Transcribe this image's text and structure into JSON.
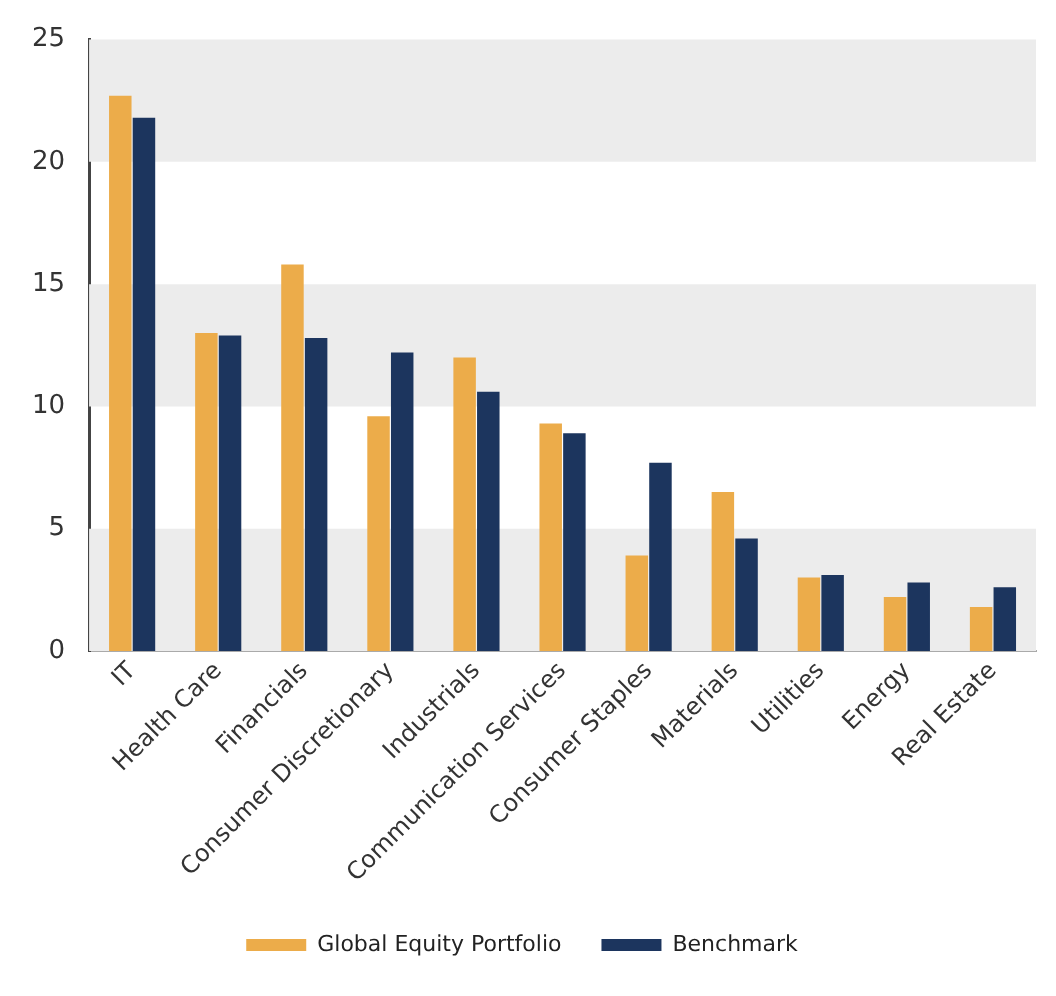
{
  "chart_data": {
    "type": "bar",
    "categories": [
      "IT",
      "Health Care",
      "Financials",
      "Consumer Discretionary",
      "Industrials",
      "Communication Services",
      "Consumer Staples",
      "Materials",
      "Utilities",
      "Energy",
      "Real Estate"
    ],
    "series": [
      {
        "name": "Global Equity Portfolio",
        "color": "#ecac4a",
        "values": [
          22.7,
          13.0,
          15.8,
          9.6,
          12.0,
          9.3,
          3.9,
          6.5,
          3.0,
          2.2,
          1.8
        ]
      },
      {
        "name": "Benchmark",
        "color": "#1c355e",
        "values": [
          21.8,
          12.9,
          12.8,
          12.2,
          10.6,
          8.9,
          7.7,
          4.6,
          3.1,
          2.8,
          2.6
        ]
      }
    ],
    "ylim": [
      0,
      25
    ],
    "yticks": [
      0,
      5,
      10,
      15,
      20,
      25
    ],
    "grid": false,
    "legend": "bottom",
    "bands": [
      {
        "axis": "y",
        "from": 0,
        "to": 5,
        "color": "#ececec"
      },
      {
        "axis": "y",
        "from": 10,
        "to": 15,
        "color": "#ececec"
      },
      {
        "axis": "y",
        "from": 20,
        "to": 25,
        "color": "#ececec"
      }
    ]
  }
}
